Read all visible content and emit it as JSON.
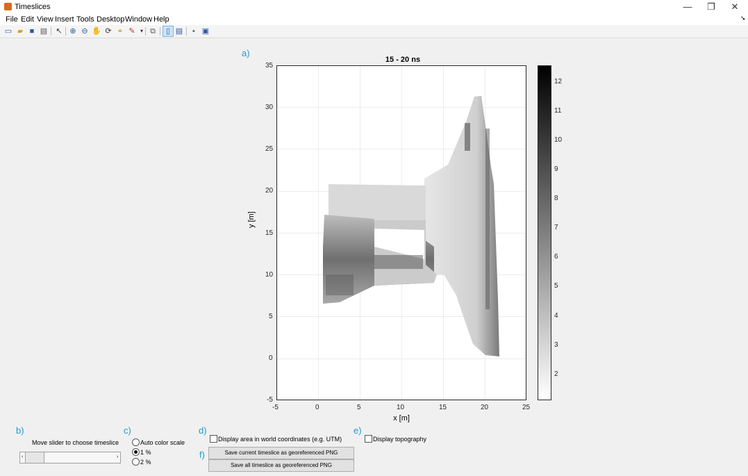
{
  "window": {
    "title": "Timeslices",
    "minimize": "—",
    "restore": "❐",
    "close": "✕"
  },
  "menu": [
    "File",
    "Edit",
    "View",
    "Insert",
    "Tools",
    "Desktop",
    "Window",
    "Help"
  ],
  "menu_overflow_icon": "arrow-icon",
  "toolbar": [
    "new-figure-icon",
    "open-file-icon",
    "save-icon",
    "print-icon",
    "pointer-icon",
    "zoom-in-icon",
    "zoom-out-icon",
    "pan-icon",
    "rotate-icon",
    "data-cursor-icon",
    "brush-icon",
    "link-plot-icon",
    "colorbar-icon",
    "legend-icon",
    "hide-plot-tools-icon",
    "show-plot-tools-icon"
  ],
  "panel_labels": {
    "a": "a)",
    "b": "b)",
    "c": "c)",
    "d": "d)",
    "e": "e)",
    "f": "f)"
  },
  "chart_data": {
    "type": "heatmap",
    "title": "15 - 20 ns",
    "xlabel": "x [m]",
    "ylabel": "y [m]",
    "xlim": [
      -5,
      25
    ],
    "ylim": [
      -5,
      35
    ],
    "xticks": [
      "-5",
      "0",
      "5",
      "10",
      "15",
      "20",
      "25"
    ],
    "yticks": [
      "35",
      "30",
      "25",
      "20",
      "15",
      "10",
      "5",
      "0",
      "-5"
    ],
    "grid": true,
    "colormap": "gray (white = low, black = high)",
    "colorbar_ticks": [
      "12",
      "11",
      "10",
      "9",
      "8",
      "7",
      "6",
      "5",
      "4",
      "3",
      "2"
    ],
    "colorbar_range": [
      1.1,
      12.6
    ]
  },
  "controls": {
    "slider_caption": "Move slider to choose timeslice",
    "slider_position": 0.1,
    "color_scale_options": [
      {
        "label": "Auto color scale",
        "selected": false
      },
      {
        "label": "1 %",
        "selected": true
      },
      {
        "label": "2 %",
        "selected": false
      }
    ],
    "world_coords_label": "Display area in world coordinates (e.g. UTM)",
    "topography_label": "Display topography",
    "save_current_label": "Save current timeslice as georeferenced PNG",
    "save_all_label": "Save all timeslice as georeferenced PNG"
  }
}
